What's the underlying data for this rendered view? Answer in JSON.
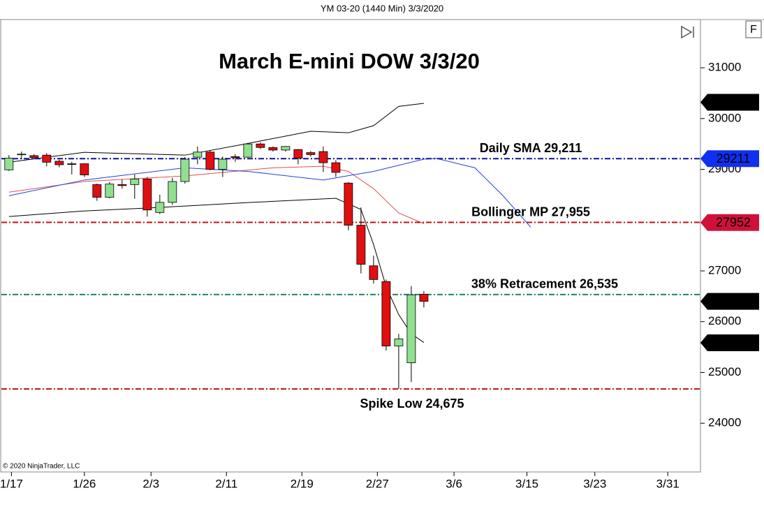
{
  "chart_data": {
    "type": "candlestick",
    "header": "YM 03-20 (1440 Min)  3/3/2020",
    "title": "March E-mini DOW 3/3/20",
    "copyright": "© 2020 NinjaTrader, LLC",
    "button": "F",
    "up_color": "#90e090",
    "down_color": "#e01010",
    "open": [
      28990,
      29290,
      29270,
      29280,
      29160,
      29110,
      29110,
      28700,
      28450,
      28700,
      28700,
      28810,
      28150,
      28350,
      28760,
      29240,
      29340,
      29000,
      29250,
      29240,
      29500,
      29430,
      29380,
      29390,
      29330,
      29350,
      29130,
      28730,
      27900,
      27100,
      26790,
      25520,
      25190,
      26540
    ],
    "high": [
      29280,
      29350,
      29300,
      29320,
      29190,
      29150,
      29120,
      28720,
      28750,
      28800,
      28900,
      28850,
      28500,
      28830,
      29240,
      29450,
      29380,
      29250,
      29300,
      29520,
      29530,
      29450,
      29460,
      29400,
      29360,
      29450,
      29180,
      28750,
      28250,
      27300,
      26830,
      25760,
      26700,
      26600
    ],
    "low": [
      28970,
      29200,
      29200,
      29060,
      29040,
      28900,
      28850,
      28380,
      28430,
      28620,
      28420,
      28070,
      28120,
      28300,
      28720,
      29100,
      28980,
      28850,
      29150,
      29230,
      29400,
      29350,
      29350,
      29100,
      29250,
      28950,
      28850,
      27800,
      26950,
      26750,
      25430,
      24675,
      24810,
      26280
    ],
    "close": [
      29220,
      29300,
      29230,
      29140,
      29090,
      29100,
      28890,
      28450,
      28710,
      28680,
      28810,
      28200,
      28350,
      28760,
      29200,
      29340,
      29000,
      29200,
      29230,
      29500,
      29430,
      29380,
      29450,
      29220,
      29290,
      29130,
      28940,
      27900,
      27130,
      26830,
      25520,
      25660,
      26530,
      26400
    ],
    "overlays": [
      {
        "color": "#000000",
        "x": [
          0,
          6,
          14,
          19,
          24,
          27,
          29,
          31,
          33
        ],
        "values": [
          29140,
          29335,
          29280,
          29510,
          29750,
          29720,
          29860,
          30240,
          30300
        ]
      },
      {
        "color": "#000000",
        "x": [
          0,
          6,
          12,
          19,
          26,
          28,
          29,
          30,
          31,
          32,
          33
        ],
        "values": [
          28070,
          28180,
          28250,
          28345,
          28430,
          28210,
          27520,
          26690,
          26140,
          25760,
          25590
        ]
      },
      {
        "color": "#e05050",
        "x": [
          0,
          6,
          14,
          21,
          25,
          27,
          29,
          31,
          33
        ],
        "values": [
          28550,
          28760,
          28870,
          29030,
          29060,
          28960,
          28620,
          28140,
          27930
        ]
      },
      {
        "color": "#2040e0",
        "x": [
          0,
          6,
          14,
          19,
          25,
          29,
          33,
          34,
          37.06,
          39.3,
          41.5
        ],
        "values": [
          28480,
          28790,
          29030,
          28960,
          28790,
          28960,
          29200,
          29215,
          29030,
          28480,
          27860
        ]
      }
    ],
    "levels": [
      {
        "value": 29211,
        "label": "Daily SMA 29,211",
        "color": "#1010a0"
      },
      {
        "value": 27955,
        "label": "Bollinger MP 27,955",
        "color": "#c01010"
      },
      {
        "value": 26535,
        "label": "38% Retracement 26,535",
        "color": "#208070"
      },
      {
        "value": 24675,
        "label": "Spike Low 24,675",
        "color": "#c01010"
      }
    ],
    "price_markers": [
      {
        "value": 30320,
        "color": "#000000"
      },
      {
        "value": 29211,
        "color": "#1030f0"
      },
      {
        "value": 27952,
        "color": "#d0103a"
      },
      {
        "value": 26400,
        "color": "#000000"
      },
      {
        "value": 25584,
        "color": "#000000"
      }
    ],
    "ylim": [
      23040,
      31950
    ],
    "yticks": [
      24000,
      25000,
      26000,
      27000,
      29000,
      30000,
      31000
    ],
    "xlim": [
      -0.6,
      55
    ],
    "xticks": [
      {
        "value": 0.2,
        "label": "1/17"
      },
      {
        "value": 6,
        "label": "1/26"
      },
      {
        "value": 11.3,
        "label": "2/3"
      },
      {
        "value": 17.3,
        "label": "2/11"
      },
      {
        "value": 23.3,
        "label": "2/19"
      },
      {
        "value": 29.3,
        "label": "2/27"
      },
      {
        "value": 35.4,
        "label": "3/6"
      },
      {
        "value": 41.2,
        "label": "3/15"
      },
      {
        "value": 46.6,
        "label": "3/23"
      },
      {
        "value": 52.4,
        "label": "3/31"
      }
    ]
  }
}
